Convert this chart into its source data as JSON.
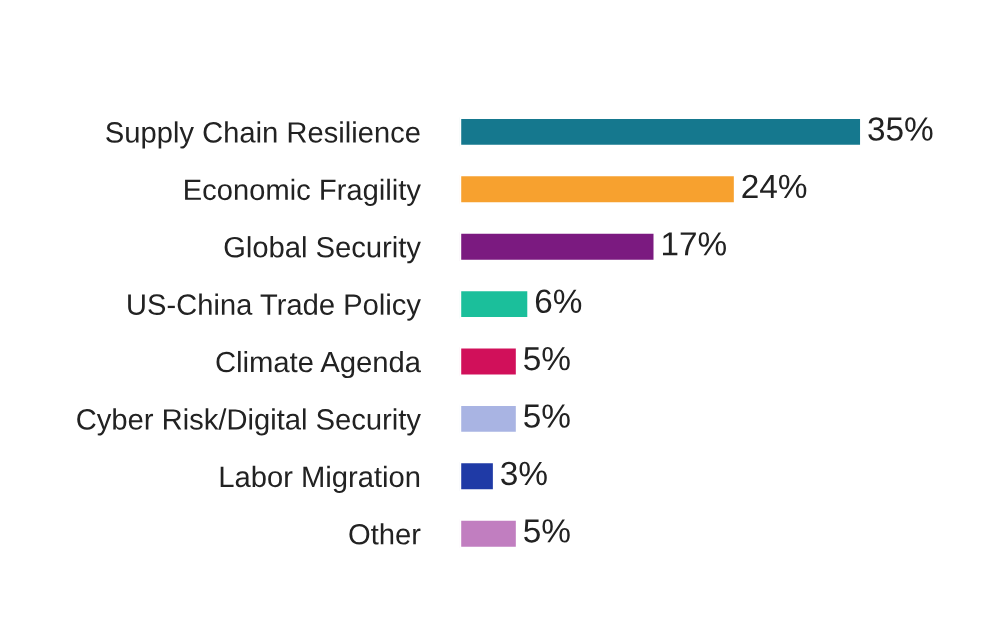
{
  "chart_data": {
    "type": "bar",
    "orientation": "horizontal",
    "categories": [
      "Supply Chain Resilience",
      "Economic Fragility",
      "Global Security",
      "US-China Trade Policy",
      "Climate Agenda",
      "Cyber Risk/Digital Security",
      "Labor Migration",
      "Other"
    ],
    "values": [
      35,
      24,
      17,
      6,
      5,
      5,
      3,
      5
    ],
    "colors": [
      "#15788e",
      "#f7a12f",
      "#7b1a80",
      "#1bbf9b",
      "#d1105a",
      "#a9b4e3",
      "#1f3aa6",
      "#c17ec0"
    ],
    "value_labels": [
      "35%",
      "24%",
      "17%",
      "6%",
      "5%",
      "5%",
      "3%",
      "5%"
    ],
    "grid": false,
    "legend": false
  }
}
